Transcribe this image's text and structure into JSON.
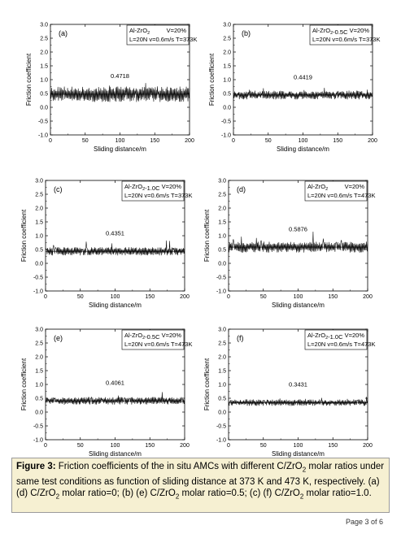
{
  "chart_data": [
    {
      "type": "line",
      "panel": "(a)",
      "composition": "Al-ZrO2",
      "conditions": [
        "V=20%",
        "L=20N v=0.6m/s T=373K"
      ],
      "mean_label": "0.4718",
      "xlabel": "Sliding distance/m",
      "ylabel": "Friction coefficient",
      "xlim": [
        0,
        200
      ],
      "ylim": [
        -1.0,
        3.0
      ],
      "xticks": [
        0,
        50,
        100,
        150,
        200
      ],
      "yticks": [
        "-1.0",
        "-0.5",
        "0.0",
        "0.5",
        "1.0",
        "1.5",
        "2.0",
        "2.5",
        "3.0"
      ],
      "series": [
        {
          "mean": 0.4718,
          "amplitude": 0.28,
          "spike": 0.12,
          "seed": 11
        }
      ]
    },
    {
      "type": "line",
      "panel": "(b)",
      "composition": "Al-ZrO2-0.5C",
      "conditions": [
        "V=20%",
        "L=20N v=0.6m/s T=373K"
      ],
      "mean_label": "0.4419",
      "xlabel": "Sliding distance/m",
      "ylabel": "Friction coefficient",
      "xlim": [
        0,
        200
      ],
      "ylim": [
        -1.0,
        3.0
      ],
      "xticks": [
        0,
        50,
        100,
        150,
        200
      ],
      "yticks": [
        "-1.0",
        "-0.5",
        "0.0",
        "0.5",
        "1.0",
        "1.5",
        "2.0",
        "2.5",
        "3.0"
      ],
      "series": [
        {
          "mean": 0.4419,
          "amplitude": 0.16,
          "spike": 0.08,
          "seed": 23
        }
      ]
    },
    {
      "type": "line",
      "panel": "(c)",
      "composition": "Al-ZrO2-1.0C",
      "conditions": [
        "V=20%",
        "L=20N v=0.6m/s T=373K"
      ],
      "mean_label": "0.4351",
      "xlabel": "Sliding distance/m",
      "ylabel": "Friction coefficient",
      "xlim": [
        0,
        200
      ],
      "ylim": [
        -1.0,
        3.0
      ],
      "xticks": [
        0,
        50,
        100,
        150,
        200
      ],
      "yticks": [
        "-1.0",
        "-0.5",
        "0.0",
        "0.5",
        "1.0",
        "1.5",
        "2.0",
        "2.5",
        "3.0"
      ],
      "series": [
        {
          "mean": 0.4351,
          "amplitude": 0.15,
          "spike": 0.25,
          "seed": 37
        }
      ]
    },
    {
      "type": "line",
      "panel": "(d)",
      "composition": "Al-ZrO2",
      "conditions": [
        "V=20%",
        "L=20N v=0.6m/s T=473K"
      ],
      "mean_label": "0.5876",
      "xlabel": "Sliding distance/m",
      "ylabel": "Friction coefficient",
      "xlim": [
        0,
        200
      ],
      "ylim": [
        -1.0,
        3.0
      ],
      "xticks": [
        0,
        50,
        100,
        150,
        200
      ],
      "yticks": [
        "-1.0",
        "-0.5",
        "0.0",
        "0.5",
        "1.0",
        "1.5",
        "2.0",
        "2.5",
        "3.0"
      ],
      "series": [
        {
          "mean": 0.5876,
          "amplitude": 0.2,
          "spike": 0.3,
          "seed": 41
        }
      ]
    },
    {
      "type": "line",
      "panel": "(e)",
      "composition": "Al-ZrO2-0.5C",
      "conditions": [
        "V=20%",
        "L=20N v=0.6m/s T=473K"
      ],
      "mean_label": "0.4061",
      "xlabel": "Sliding distance/m",
      "ylabel": "Friction coefficient",
      "xlim": [
        0,
        200
      ],
      "ylim": [
        -1.0,
        3.0
      ],
      "xticks": [
        0,
        50,
        100,
        150,
        200
      ],
      "yticks": [
        "-1.0",
        "-0.5",
        "0.0",
        "0.5",
        "1.0",
        "1.5",
        "2.0",
        "2.5",
        "3.0"
      ],
      "series": [
        {
          "mean": 0.4061,
          "amplitude": 0.14,
          "spike": 0.12,
          "seed": 53
        }
      ]
    },
    {
      "type": "line",
      "panel": "(f)",
      "composition": "Al-ZrO2-1.0C",
      "conditions": [
        "V=20%",
        "L=20N v=0.6m/s T=473K"
      ],
      "mean_label": "0.3431",
      "xlabel": "Sliding distance/m",
      "ylabel": "Friction coefficient",
      "xlim": [
        0,
        200
      ],
      "ylim": [
        -1.0,
        3.0
      ],
      "xticks": [
        0,
        50,
        100,
        150,
        200
      ],
      "yticks": [
        "-1.0",
        "-0.5",
        "0.0",
        "0.5",
        "1.0",
        "1.5",
        "2.0",
        "2.5",
        "3.0"
      ],
      "series": [
        {
          "mean": 0.3431,
          "amplitude": 0.12,
          "spike": 0.08,
          "seed": 67
        }
      ]
    }
  ],
  "caption": {
    "label": "Figure 3:",
    "text": "Friction coefficients of the in situ AMCs with different C/ZrO2 molar ratios under same test conditions as function of sliding distance at 373 K and 473 K, respectively. (a) (d) C/ZrO2 molar ratio=0; (b) (e) C/ZrO2 molar ratio=0.5; (c) (f) C/ZrO2 molar ratio=1.0."
  },
  "page_number": "Page 3 of 6",
  "colors": {
    "line": "#000000",
    "caption_bg": "#f6f0d2",
    "caption_border": "#9b9b9b"
  }
}
